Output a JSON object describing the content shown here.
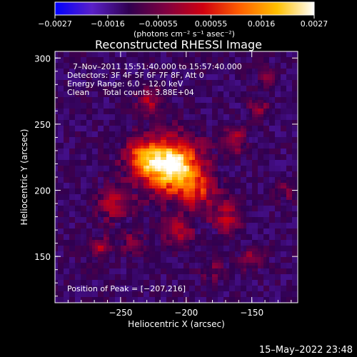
{
  "chart_data": {
    "type": "heatmap",
    "title": "Reconstructed RHESSI Image",
    "xlabel": "Heliocentric X (arcsec)",
    "ylabel": "Heliocentric Y (arcsec)",
    "xlim": [
      -300,
      -115
    ],
    "ylim": [
      115,
      305
    ],
    "x_ticks": [
      -250,
      -200,
      -150
    ],
    "y_ticks": [
      150,
      200,
      250,
      300
    ],
    "x_tick_labels": [
      "−250",
      "−200",
      "−150"
    ],
    "y_tick_labels": [
      "150",
      "200",
      "250",
      "300"
    ],
    "colorbar": {
      "range": [
        -0.0027,
        0.0027
      ],
      "ticks": [
        -0.0027,
        -0.0016,
        -0.00055,
        0.00055,
        0.0016,
        0.0027
      ],
      "tick_labels": [
        "−0.0027",
        "−0.0016",
        "−0.00055",
        "0.00055",
        "0.0016",
        "0.0027"
      ],
      "unit_label": "(photons cm⁻² s⁻¹ asec⁻²)",
      "colors": [
        "#0000ff",
        "#5a20c8",
        "#300050",
        "#800040",
        "#d00010",
        "#ff6000",
        "#ffc000",
        "#ffffff"
      ]
    },
    "annotations": {
      "time_range": "7–Nov–2011 15:51:40.000 to 15:57:40.000",
      "detectors": "Detectors: 3F 4F 5F 6F 7F 8F, Att 0",
      "energy_range": "Energy Range: 6.0 – 12.0 keV",
      "clean": "Clean",
      "total_counts": "Total counts: 3.88E+04",
      "peak_position": "Position of Peak = [−207,216]"
    },
    "peak": {
      "x": -207,
      "y": 216
    },
    "sources": [
      {
        "x": -210,
        "y": 218,
        "sigma": 14,
        "amp": 1.0
      },
      {
        "x": -232,
        "y": 224,
        "sigma": 10,
        "amp": 0.55
      },
      {
        "x": -190,
        "y": 200,
        "sigma": 10,
        "amp": 0.35
      },
      {
        "x": -228,
        "y": 268,
        "sigma": 6,
        "amp": 0.35
      },
      {
        "x": -162,
        "y": 238,
        "sigma": 6,
        "amp": 0.3
      },
      {
        "x": -145,
        "y": 262,
        "sigma": 5,
        "amp": 0.25
      },
      {
        "x": -255,
        "y": 190,
        "sigma": 9,
        "amp": 0.3
      },
      {
        "x": -205,
        "y": 170,
        "sigma": 8,
        "amp": 0.3
      },
      {
        "x": -170,
        "y": 180,
        "sigma": 8,
        "amp": 0.3
      },
      {
        "x": -266,
        "y": 158,
        "sigma": 5,
        "amp": 0.3
      },
      {
        "x": -240,
        "y": 160,
        "sigma": 6,
        "amp": 0.22
      },
      {
        "x": -150,
        "y": 148,
        "sigma": 6,
        "amp": 0.22
      },
      {
        "x": -125,
        "y": 200,
        "sigma": 5,
        "amp": 0.2
      },
      {
        "x": -140,
        "y": 285,
        "sigma": 5,
        "amp": 0.18
      },
      {
        "x": -180,
        "y": 140,
        "sigma": 6,
        "amp": 0.18
      }
    ]
  },
  "footer": {
    "timestamp": "15–May–2022 23:48"
  }
}
